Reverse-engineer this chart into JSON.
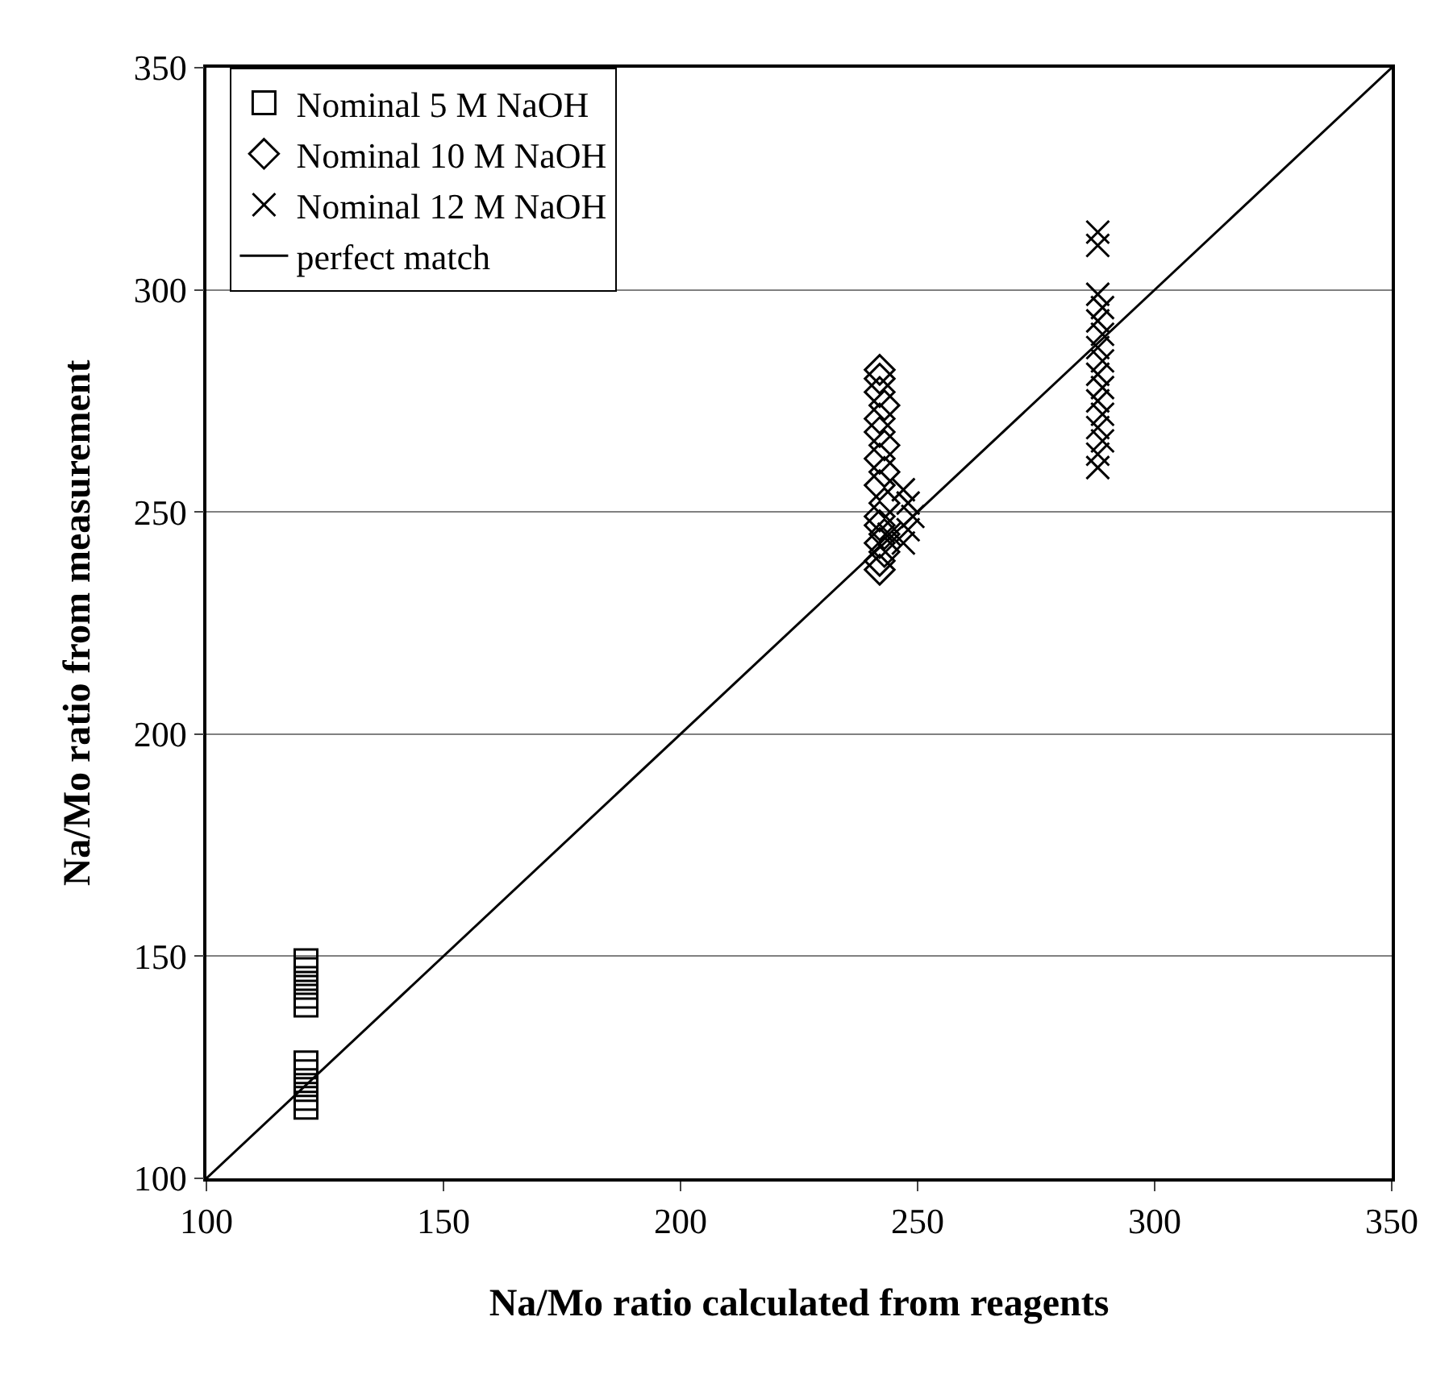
{
  "chart_data": {
    "type": "scatter",
    "xlabel": "Na/Mo ratio calculated from reagents",
    "ylabel": "Na/Mo ratio from measurement",
    "xlim": [
      100,
      350
    ],
    "xticks": [
      100,
      150,
      200,
      250,
      300,
      350
    ],
    "ylim": [
      100,
      350
    ],
    "yticks": [
      100,
      150,
      200,
      250,
      300,
      350
    ],
    "grid": "y",
    "legend": "top left",
    "series": [
      {
        "name": "Nominal 5 M NaOH",
        "color": "#000000",
        "marker": "square",
        "x": [
          121,
          121,
          121,
          121,
          121,
          121,
          121,
          121,
          121,
          121,
          121,
          121
        ],
        "values": [
          116,
          118,
          120,
          122,
          124,
          126,
          139,
          141,
          143,
          145,
          147,
          149
        ]
      },
      {
        "name": "Nominal 10 M NaOH",
        "color": "#000000",
        "marker": "diamond",
        "x": [
          242,
          242,
          243,
          242,
          243,
          242,
          242,
          243,
          242,
          243,
          242,
          243,
          242,
          242,
          243,
          242,
          242,
          242
        ],
        "values": [
          237,
          239,
          241,
          243,
          245,
          247,
          249,
          252,
          256,
          259,
          262,
          265,
          268,
          271,
          274,
          277,
          280,
          282
        ]
      },
      {
        "name": "Nominal 12 M NaOH",
        "color": "#000000",
        "marker": "cross",
        "x": [
          247,
          248,
          249,
          248,
          247,
          244,
          288,
          288,
          289,
          288,
          289,
          288,
          289,
          288,
          289,
          288,
          289,
          288,
          289,
          288,
          288,
          288
        ],
        "values": [
          243,
          246,
          249,
          252,
          255,
          245,
          260,
          263,
          266,
          269,
          272,
          275,
          278,
          281,
          284,
          287,
          290,
          293,
          296,
          299,
          310,
          313
        ]
      },
      {
        "name": "perfect match",
        "type": "line",
        "color": "#000000",
        "marker": "none",
        "line_style": "solid",
        "x": [
          100,
          350
        ],
        "values": [
          100,
          350
        ]
      }
    ]
  }
}
